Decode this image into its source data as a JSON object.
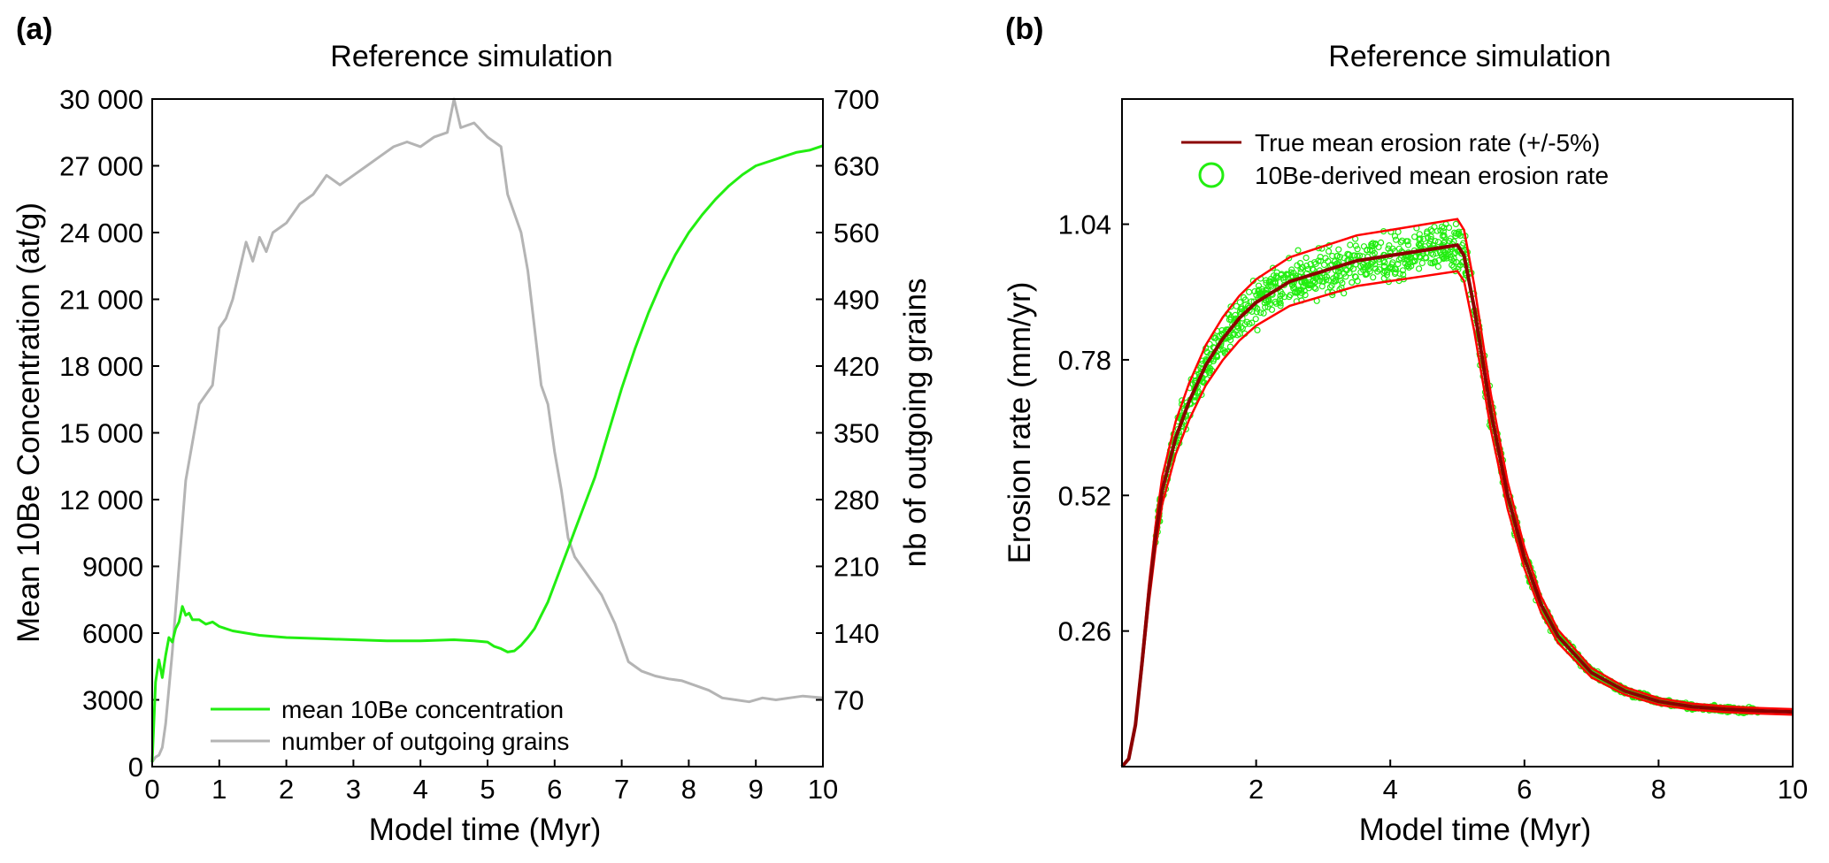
{
  "chart_data": [
    {
      "panel": "(a)",
      "type": "line",
      "title": "Reference simulation",
      "xlabel": "Model time (Myr)",
      "ylabel": "Mean 10Be Concentration (at/g)",
      "ylabel_right": "nb of outgoing grains",
      "xlim": [
        0,
        10
      ],
      "ylim": [
        0,
        30000
      ],
      "ylim_right": [
        0,
        700
      ],
      "xticks": [
        0,
        1,
        2,
        3,
        4,
        5,
        6,
        7,
        8,
        9,
        10
      ],
      "yticks": [
        0,
        3000,
        6000,
        9000,
        12000,
        15000,
        18000,
        21000,
        24000,
        27000,
        30000
      ],
      "yticks_labels": [
        "0",
        "3000",
        "6000",
        "9000",
        "12 000",
        "15 000",
        "18 000",
        "21 000",
        "24 000",
        "27 000",
        "30 000"
      ],
      "yticks_right": [
        70,
        140,
        210,
        280,
        350,
        420,
        490,
        560,
        630,
        700
      ],
      "grid": false,
      "legend_position": "bottom-left",
      "colors": {
        "concentration": "#22ee11",
        "grains": "#b4b4b4"
      },
      "series": [
        {
          "name": "mean 10Be concentration",
          "axis": "left",
          "x": [
            0,
            0.05,
            0.1,
            0.15,
            0.2,
            0.25,
            0.3,
            0.35,
            0.4,
            0.45,
            0.5,
            0.55,
            0.6,
            0.7,
            0.8,
            0.9,
            1.0,
            1.2,
            1.4,
            1.6,
            1.8,
            2.0,
            2.5,
            3.0,
            3.5,
            4.0,
            4.5,
            4.8,
            5.0,
            5.1,
            5.2,
            5.3,
            5.4,
            5.5,
            5.6,
            5.7,
            5.8,
            5.9,
            6.0,
            6.1,
            6.2,
            6.3,
            6.4,
            6.5,
            6.6,
            6.7,
            6.8,
            6.9,
            7.0,
            7.2,
            7.4,
            7.6,
            7.8,
            8.0,
            8.2,
            8.4,
            8.6,
            8.8,
            9.0,
            9.2,
            9.4,
            9.6,
            9.8,
            10.0
          ],
          "y": [
            200,
            3800,
            4800,
            4000,
            5000,
            5800,
            5600,
            6200,
            6500,
            7200,
            6800,
            6900,
            6600,
            6600,
            6400,
            6500,
            6300,
            6100,
            6000,
            5900,
            5850,
            5800,
            5750,
            5700,
            5650,
            5650,
            5700,
            5650,
            5600,
            5400,
            5300,
            5150,
            5200,
            5450,
            5800,
            6200,
            6800,
            7400,
            8200,
            9000,
            9800,
            10600,
            11400,
            12200,
            13000,
            14000,
            15000,
            16000,
            17000,
            18800,
            20400,
            21800,
            23000,
            24000,
            24800,
            25500,
            26100,
            26600,
            27000,
            27200,
            27400,
            27600,
            27700,
            27900
          ]
        },
        {
          "name": "number of outgoing grains",
          "axis": "right",
          "x": [
            0,
            0.05,
            0.1,
            0.15,
            0.2,
            0.3,
            0.4,
            0.5,
            0.6,
            0.7,
            0.8,
            0.9,
            1.0,
            1.1,
            1.2,
            1.3,
            1.4,
            1.5,
            1.6,
            1.7,
            1.8,
            2.0,
            2.2,
            2.4,
            2.6,
            2.8,
            3.0,
            3.2,
            3.4,
            3.6,
            3.8,
            4.0,
            4.2,
            4.4,
            4.5,
            4.6,
            4.8,
            5.0,
            5.2,
            5.3,
            5.4,
            5.5,
            5.6,
            5.7,
            5.8,
            5.9,
            6.0,
            6.1,
            6.2,
            6.3,
            6.5,
            6.7,
            6.9,
            7.1,
            7.3,
            7.5,
            7.7,
            7.9,
            8.1,
            8.3,
            8.5,
            8.7,
            8.9,
            9.1,
            9.3,
            9.5,
            9.7,
            10.0
          ],
          "y": [
            5,
            10,
            12,
            20,
            45,
            120,
            210,
            300,
            340,
            380,
            390,
            400,
            460,
            470,
            490,
            520,
            550,
            530,
            555,
            540,
            560,
            570,
            590,
            600,
            620,
            610,
            620,
            630,
            640,
            650,
            655,
            650,
            660,
            665,
            700,
            670,
            675,
            660,
            650,
            600,
            580,
            560,
            520,
            460,
            400,
            380,
            330,
            290,
            240,
            220,
            200,
            180,
            150,
            110,
            100,
            95,
            92,
            90,
            85,
            80,
            72,
            70,
            68,
            72,
            70,
            72,
            74,
            72
          ]
        }
      ]
    },
    {
      "panel": "(b)",
      "type": "line",
      "title": "Reference simulation",
      "xlabel": "Model time (Myr)",
      "ylabel": "Erosion rate (mm/yr)",
      "xlim": [
        0,
        10
      ],
      "ylim": [
        0,
        1.28
      ],
      "xticks": [
        2,
        4,
        6,
        8,
        10
      ],
      "yticks": [
        0.26,
        0.52,
        0.78,
        1.04
      ],
      "grid": false,
      "legend_position": "top-left",
      "colors": {
        "true": "#8b0000",
        "envelope": "#ff0000",
        "derived": "#22ee11"
      },
      "series": [
        {
          "name": "True mean erosion rate (+/-5%)",
          "x": [
            0,
            0.1,
            0.2,
            0.3,
            0.4,
            0.5,
            0.6,
            0.8,
            1.0,
            1.25,
            1.5,
            1.75,
            2.0,
            2.5,
            3.0,
            3.5,
            4.0,
            4.5,
            5.0,
            5.1,
            5.25,
            5.5,
            5.75,
            6.0,
            6.25,
            6.5,
            7.0,
            7.5,
            8.0,
            8.5,
            9.0,
            9.5,
            10.0
          ],
          "y": [
            0.0,
            0.015,
            0.08,
            0.2,
            0.33,
            0.44,
            0.53,
            0.63,
            0.7,
            0.77,
            0.82,
            0.86,
            0.89,
            0.93,
            0.95,
            0.97,
            0.98,
            0.99,
            1.0,
            0.98,
            0.88,
            0.68,
            0.52,
            0.4,
            0.31,
            0.25,
            0.18,
            0.145,
            0.125,
            0.115,
            0.11,
            0.107,
            0.105
          ]
        },
        {
          "name": "10Be-derived mean erosion rate",
          "marker": "circle",
          "x_range": [
            0.5,
            9.5
          ]
        }
      ]
    }
  ]
}
